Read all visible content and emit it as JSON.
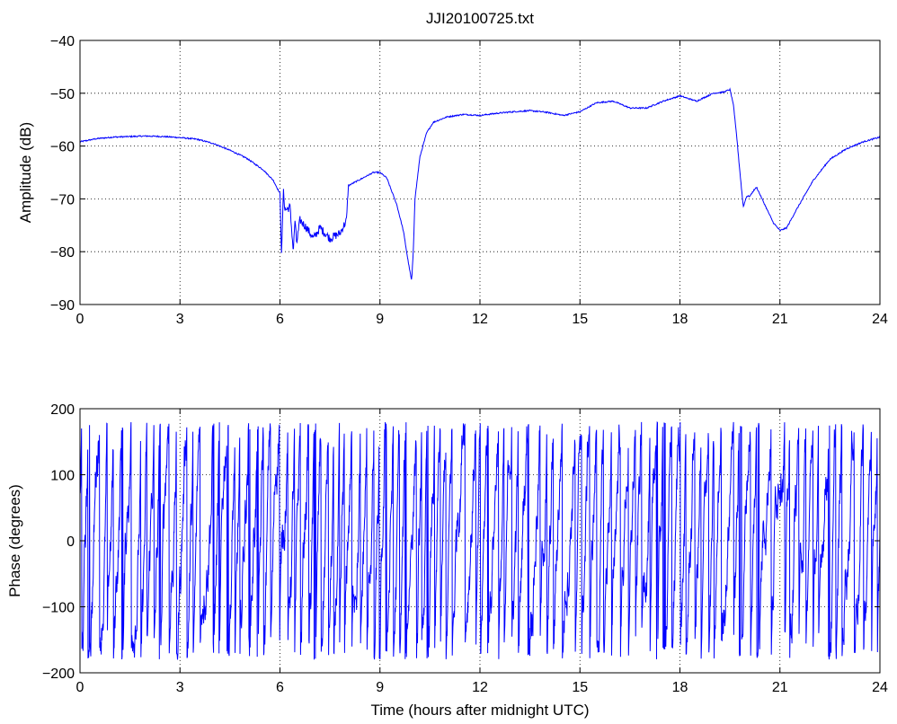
{
  "figure": {
    "background": "#ffffff",
    "line_color": "#0000ff"
  },
  "chart_data": [
    {
      "type": "line",
      "title": "JJI20100725.txt",
      "xlabel": "",
      "ylabel": "Amplitude (dB)",
      "xlim": [
        0,
        24
      ],
      "ylim": [
        -90,
        -40
      ],
      "xticks": [
        0,
        3,
        6,
        9,
        12,
        15,
        18,
        21,
        24
      ],
      "yticks": [
        -90,
        -80,
        -70,
        -60,
        -50,
        -40
      ],
      "grid": true,
      "grid_style": "dotted",
      "series": [
        {
          "color": "#0000ff",
          "x": [
            0,
            0.5,
            1,
            1.5,
            2,
            2.5,
            3,
            3.5,
            4,
            4.5,
            5,
            5.5,
            5.8,
            6.0,
            6.05,
            6.1,
            6.15,
            6.2,
            6.3,
            6.4,
            6.45,
            6.5,
            6.6,
            6.8,
            7.0,
            7.2,
            7.5,
            7.8,
            8.0,
            8.05,
            8.2,
            8.5,
            8.8,
            9.0,
            9.2,
            9.5,
            9.7,
            9.85,
            9.95,
            10.0,
            10.05,
            10.2,
            10.4,
            10.6,
            11,
            11.5,
            12,
            12.5,
            13,
            13.5,
            14,
            14.5,
            15,
            15.5,
            16,
            16.5,
            17,
            17.5,
            18,
            18.5,
            19,
            19.3,
            19.5,
            19.6,
            19.7,
            19.8,
            19.9,
            20.0,
            20.1,
            20.2,
            20.3,
            20.5,
            20.8,
            21.0,
            21.2,
            21.5,
            22,
            22.5,
            23,
            23.5,
            24
          ],
          "values": [
            -59.2,
            -58.6,
            -58.3,
            -58.2,
            -58.1,
            -58.2,
            -58.4,
            -58.7,
            -59.5,
            -60.8,
            -62.3,
            -64.5,
            -66.5,
            -69,
            -81,
            -68.5,
            -72,
            -72,
            -71.5,
            -80,
            -74,
            -78.5,
            -74,
            -75.5,
            -77.5,
            -75.5,
            -77.5,
            -76.5,
            -74,
            -67.5,
            -67,
            -66,
            -65,
            -65,
            -66,
            -71,
            -76,
            -82,
            -85.5,
            -80,
            -70,
            -62,
            -57.5,
            -55.5,
            -54.5,
            -54,
            -54.2,
            -53.8,
            -53.5,
            -53.3,
            -53.6,
            -54.2,
            -53.5,
            -51.8,
            -51.5,
            -52.8,
            -52.8,
            -51.5,
            -50.5,
            -51.5,
            -50,
            -49.8,
            -49.3,
            -52,
            -58,
            -65,
            -71.5,
            -69.5,
            -69.5,
            -68.5,
            -67.8,
            -70.5,
            -74.5,
            -76,
            -75.5,
            -72,
            -66.5,
            -62.5,
            -60.5,
            -59.2,
            -58.3
          ]
        }
      ]
    },
    {
      "type": "line",
      "title": "",
      "xlabel": "Time (hours after midnight UTC)",
      "ylabel": "Phase (degrees)",
      "xlim": [
        0,
        24
      ],
      "ylim": [
        -200,
        200
      ],
      "xticks": [
        0,
        3,
        6,
        9,
        12,
        15,
        18,
        21,
        24
      ],
      "yticks": [
        -200,
        -100,
        0,
        100,
        200
      ],
      "grid": true,
      "grid_style": "dotted",
      "phase_wrapped": true,
      "wrap_range": [
        -180,
        180
      ],
      "series": [
        {
          "color": "#0000ff",
          "x": [
            0,
            0.05,
            0.1,
            0.15,
            0.2,
            0.25,
            0.3,
            0.35,
            0.4,
            0.45,
            0.5,
            0.55,
            0.6,
            0.65,
            0.7,
            0.75,
            0.8,
            0.85,
            0.9,
            0.95,
            1.0,
            1.05,
            1.1,
            1.15,
            1.2,
            1.25,
            1.3,
            1.35,
            1.4,
            1.45,
            1.5
          ],
          "values": [
            60,
            80,
            -30,
            20,
            -140,
            100,
            178,
            -180,
            150,
            178,
            -120,
            120,
            178,
            40,
            -100,
            178,
            -160,
            60,
            120,
            -60,
            -130,
            100,
            170,
            -170,
            80,
            178,
            -100,
            60,
            178,
            -175,
            120
          ]
        }
      ]
    }
  ]
}
